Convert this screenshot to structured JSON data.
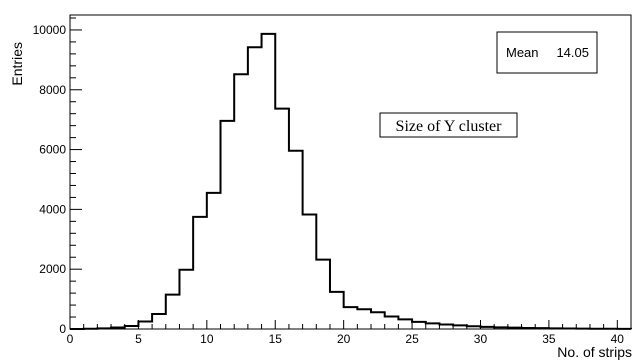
{
  "chart_data": {
    "type": "histogram",
    "ylabel": "Entries",
    "xlabel": "No. of strips",
    "xlim": [
      0,
      41
    ],
    "ylim": [
      0,
      10500
    ],
    "x_ticks": [
      0,
      5,
      10,
      15,
      20,
      25,
      30,
      35,
      40
    ],
    "y_ticks": [
      0,
      2000,
      4000,
      6000,
      8000,
      10000
    ],
    "bin_width": 1,
    "bin_edges_start": 0,
    "values": [
      0,
      10,
      20,
      50,
      100,
      250,
      500,
      1150,
      1980,
      3750,
      4550,
      6960,
      8520,
      9420,
      9870,
      7370,
      5960,
      3830,
      2320,
      1240,
      730,
      660,
      560,
      420,
      320,
      240,
      190,
      150,
      120,
      90,
      70,
      55,
      45,
      35,
      28,
      22,
      18,
      14,
      10,
      8,
      5
    ],
    "stats": {
      "label": "Mean",
      "value": "14.05"
    },
    "annotation": "Size of Y cluster",
    "grid": false
  }
}
